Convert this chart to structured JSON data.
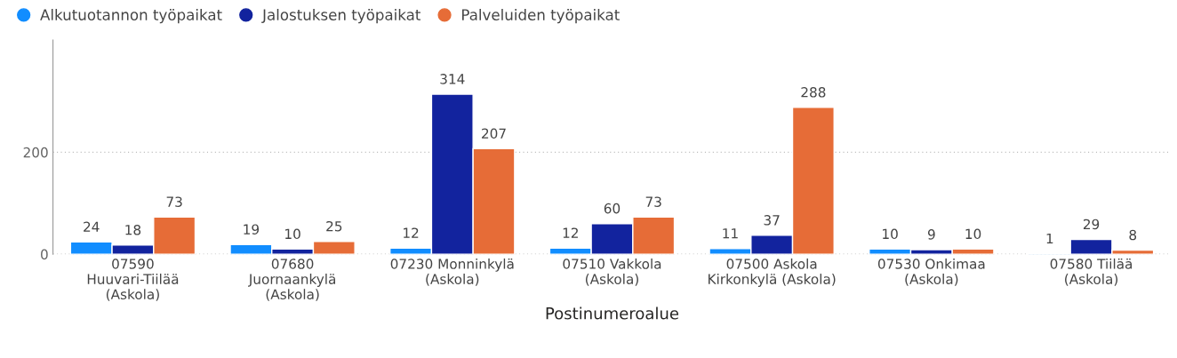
{
  "chart_data": {
    "type": "bar",
    "categories": [
      "07590\nHuuvari-Tiilää\n(Askola)",
      "07680\nJuornaankylä\n(Askola)",
      "07230 Monninkylä\n(Askola)",
      "07510 Vakkola\n(Askola)",
      "07500 Askola\nKirkonkylä (Askola)",
      "07530 Onkimaa\n(Askola)",
      "07580 Tiilää\n(Askola)"
    ],
    "series": [
      {
        "name": "Alkutuotannon työpaikat",
        "color": "#118dff",
        "values": [
          24,
          19,
          12,
          12,
          11,
          10,
          1
        ]
      },
      {
        "name": "Jalostuksen työpaikat",
        "color": "#12239e",
        "values": [
          18,
          10,
          314,
          60,
          37,
          9,
          29
        ]
      },
      {
        "name": "Palveluiden työpaikat",
        "color": "#e66c37",
        "values": [
          73,
          25,
          207,
          73,
          288,
          10,
          8
        ]
      }
    ],
    "xlabel": "Postinumeroalue",
    "ylim": [
      0,
      420
    ],
    "yticks": [
      0,
      200
    ],
    "grid": "y",
    "legend": "top left",
    "marker": "circle",
    "data_labels": true
  }
}
